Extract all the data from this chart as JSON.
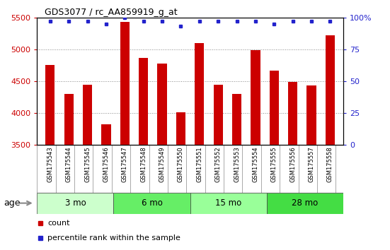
{
  "title": "GDS3077 / rc_AA859919_g_at",
  "samples": [
    "GSM175543",
    "GSM175544",
    "GSM175545",
    "GSM175546",
    "GSM175547",
    "GSM175548",
    "GSM175549",
    "GSM175550",
    "GSM175551",
    "GSM175552",
    "GSM175553",
    "GSM175554",
    "GSM175555",
    "GSM175556",
    "GSM175557",
    "GSM175558"
  ],
  "counts": [
    4760,
    4300,
    4450,
    3820,
    5430,
    4870,
    4780,
    4010,
    5100,
    4450,
    4300,
    4990,
    4670,
    4490,
    4430,
    5220
  ],
  "percentiles": [
    97,
    97,
    97,
    95,
    100,
    97,
    97,
    93,
    97,
    97,
    97,
    97,
    95,
    97,
    97,
    97
  ],
  "ylim_left": [
    3500,
    5500
  ],
  "ylim_right": [
    0,
    100
  ],
  "yticks_left": [
    3500,
    4000,
    4500,
    5000,
    5500
  ],
  "yticks_right": [
    0,
    25,
    50,
    75,
    100
  ],
  "bar_color": "#cc0000",
  "dot_color": "#2222cc",
  "age_groups": [
    {
      "label": "3 mo",
      "start": 0,
      "end": 3,
      "color": "#ccffcc"
    },
    {
      "label": "6 mo",
      "start": 4,
      "end": 7,
      "color": "#66ee66"
    },
    {
      "label": "15 mo",
      "start": 8,
      "end": 11,
      "color": "#99ff99"
    },
    {
      "label": "28 mo",
      "start": 12,
      "end": 15,
      "color": "#44dd44"
    }
  ],
  "xtick_bg": "#cccccc",
  "plot_bg": "#ffffff",
  "grid_color": "#888888",
  "bar_width": 0.5
}
